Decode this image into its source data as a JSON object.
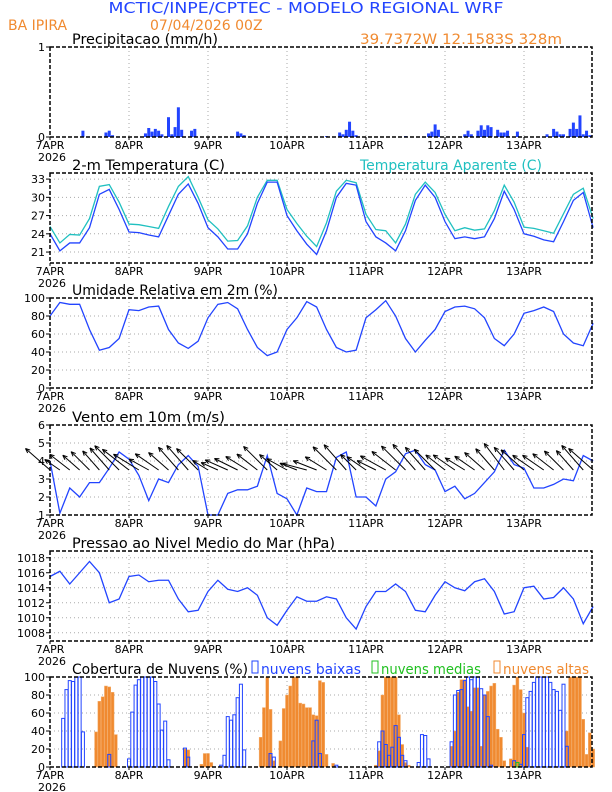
{
  "header": {
    "title": "MCTIC/INPE/CPTEC - MODELO REGIONAL WRF",
    "station": "BA IPIRA",
    "date": "07/04/2026 00Z",
    "location": "39.7372W 12.1583S 328m"
  },
  "colors": {
    "title": "#2244ff",
    "orange": "#f08a30",
    "series": "#2244ff",
    "apparent": "#20c0c0",
    "medium": "#20c020"
  },
  "x_axis": {
    "labels": [
      "7APR",
      "8APR",
      "9APR",
      "10APR",
      "11APR",
      "12APR",
      "13APR"
    ],
    "year": "2026"
  },
  "chart_data": [
    {
      "type": "bar",
      "title": "Precipitacao (mm/h)",
      "ylim": [
        0,
        1
      ],
      "yticks": [
        "0",
        "1"
      ],
      "hours": [
        10,
        17,
        18,
        19,
        29,
        30,
        31,
        32,
        33,
        34,
        36,
        37,
        38,
        39,
        40,
        43,
        44,
        57,
        58,
        59,
        84,
        88,
        89,
        90,
        91,
        92,
        93,
        108,
        115,
        116,
        117,
        118,
        126,
        127,
        128,
        130,
        131,
        132,
        133,
        134,
        136,
        137,
        138,
        139,
        142,
        151,
        153,
        154,
        155,
        156,
        158,
        159,
        160,
        161,
        162,
        163,
        164
      ],
      "values": [
        0.07,
        0.05,
        0.07,
        0.02,
        0.04,
        0.1,
        0.06,
        0.09,
        0.07,
        0.03,
        0.22,
        0.03,
        0.11,
        0.33,
        0.08,
        0.07,
        0.09,
        0.06,
        0.04,
        0.02,
        0.01,
        0.05,
        0.03,
        0.08,
        0.17,
        0.07,
        0.02,
        0.01,
        0.04,
        0.06,
        0.14,
        0.08,
        0.03,
        0.07,
        0.03,
        0.07,
        0.13,
        0.08,
        0.13,
        0.11,
        0.08,
        0.05,
        0.05,
        0.07,
        0.06,
        0.03,
        0.09,
        0.06,
        0.03,
        0.03,
        0.09,
        0.16,
        0.09,
        0.24,
        0.03,
        0.07,
        0.02
      ]
    },
    {
      "type": "line",
      "title": "2-m Temperatura (C)",
      "ylim": [
        19.2,
        34
      ],
      "yticks": [
        "21",
        "24",
        "27",
        "30",
        "33"
      ],
      "hours": [
        0,
        3,
        6,
        9,
        12,
        15,
        18,
        21,
        24,
        27,
        30,
        33,
        36,
        39,
        42,
        45,
        48,
        51,
        54,
        57,
        60,
        63,
        66,
        69,
        72,
        75,
        78,
        81,
        84,
        87,
        90,
        93,
        96,
        99,
        102,
        105,
        108,
        111,
        114,
        117,
        120,
        123,
        126,
        129,
        132,
        135,
        138,
        141,
        144,
        147,
        150,
        153,
        156,
        159,
        162,
        165
      ],
      "series": [
        {
          "name": "2-m Temperatura (C)",
          "values": [
            24,
            21.2,
            22.5,
            22.5,
            25,
            30.5,
            31.3,
            28,
            24.3,
            24.2,
            23.8,
            23.5,
            27,
            30.5,
            32.2,
            29,
            25,
            23.5,
            21.5,
            21.5,
            24,
            29,
            32.5,
            32.5,
            27,
            24.5,
            22.3,
            20.6,
            24.5,
            30,
            32.3,
            32,
            26,
            23.5,
            22.5,
            21.2,
            24.5,
            29.5,
            32,
            30,
            26,
            23.2,
            23.5,
            23.2,
            23.5,
            26.5,
            31,
            28,
            24,
            23.6,
            23,
            22.7,
            26,
            29.5,
            30.8,
            25
          ]
        },
        {
          "name": "Temperatura Aparente (C)",
          "values": [
            25.2,
            22.5,
            23.9,
            23.8,
            26.5,
            31.8,
            32.1,
            29.2,
            25.6,
            25.5,
            25.2,
            24.9,
            28.5,
            31.8,
            33.4,
            30,
            26.3,
            24.8,
            22.8,
            22.9,
            25.3,
            30,
            32.8,
            32.8,
            28,
            25.7,
            23.6,
            21.9,
            25.8,
            31,
            32.8,
            32.4,
            27.2,
            24.7,
            24.5,
            22.5,
            25.6,
            30.5,
            32.5,
            30.8,
            27.2,
            24.5,
            25,
            24.6,
            24.8,
            27.8,
            32,
            29.2,
            25.1,
            24.9,
            24.5,
            24.1,
            27.3,
            30.5,
            31.5,
            26.5
          ]
        }
      ]
    },
    {
      "type": "line",
      "title": "Umidade Relativa em 2m (%)",
      "ylim": [
        0,
        100
      ],
      "yticks": [
        "0",
        "20",
        "40",
        "60",
        "80",
        "100"
      ],
      "values": [
        80,
        95,
        93,
        93,
        65,
        42,
        45,
        55,
        87,
        86,
        90,
        91,
        65,
        50,
        44,
        52,
        78,
        93,
        95,
        88,
        65,
        45,
        36,
        40,
        65,
        78,
        96,
        90,
        65,
        45,
        40,
        42,
        78,
        87,
        97,
        80,
        55,
        40,
        53,
        65,
        85,
        90,
        91,
        88,
        78,
        55,
        47,
        60,
        83,
        86,
        90,
        85,
        60,
        50,
        47,
        72
      ]
    },
    {
      "type": "line",
      "title": "Vento em 10m (m/s)",
      "ylim": [
        1,
        6
      ],
      "yticks": [
        "1",
        "2",
        "3",
        "4",
        "5",
        "6"
      ],
      "values": [
        4,
        1.1,
        2.5,
        2,
        2.8,
        2.8,
        3.6,
        4.5,
        4.1,
        3.2,
        1.8,
        3,
        2.8,
        3.8,
        4.3,
        3.7,
        1,
        1,
        2.2,
        2.4,
        2.4,
        2.6,
        4.3,
        2.2,
        1.9,
        1,
        2.5,
        2.3,
        2.3,
        4.2,
        4.5,
        2,
        2,
        1.5,
        3,
        3.4,
        4.4,
        4.6,
        3.8,
        3.5,
        2.3,
        2.6,
        1.9,
        2.2,
        2.8,
        3.4,
        4.6,
        3.8,
        3.6,
        2.5,
        2.5,
        2.7,
        3,
        2.9,
        4.3,
        4
      ],
      "direction_deg": [
        130,
        120,
        125,
        130,
        135,
        140,
        140,
        135,
        125,
        115,
        110,
        120,
        130,
        140,
        140,
        135,
        115,
        100,
        100,
        105,
        115,
        125,
        135,
        130,
        110,
        95,
        80,
        95,
        115,
        135,
        140,
        135,
        120,
        105,
        110,
        125,
        135,
        140,
        140,
        135,
        125,
        120,
        115,
        120,
        130,
        140,
        145,
        140,
        130,
        120,
        120,
        125,
        135,
        140,
        140,
        130
      ]
    },
    {
      "type": "line",
      "title": "Pressao ao Nivel Medio do Mar (hPa)",
      "ylim": [
        1006.9,
        1018.9
      ],
      "yticks": [
        "1008",
        "1010",
        "1012",
        "1014",
        "1016",
        "1018"
      ],
      "values": [
        1015.5,
        1016.2,
        1014.5,
        1016,
        1017.5,
        1016,
        1012,
        1012.5,
        1015.5,
        1015.7,
        1014.8,
        1015,
        1015,
        1012.5,
        1010.8,
        1011,
        1013.5,
        1015,
        1013.8,
        1013.5,
        1014,
        1013,
        1010,
        1009,
        1011,
        1012.8,
        1012.2,
        1012.2,
        1012.8,
        1012.5,
        1010,
        1008.5,
        1011.5,
        1013.5,
        1013.5,
        1014.5,
        1013.5,
        1011,
        1010.8,
        1013,
        1014.8,
        1014,
        1013.6,
        1014.8,
        1015.2,
        1013.5,
        1010.5,
        1010.8,
        1014,
        1014.2,
        1012.5,
        1012.7,
        1014,
        1012.5,
        1009.2,
        1011.5
      ]
    },
    {
      "type": "bar",
      "title": "Cobertura de Nuvens (%)",
      "ylim": [
        0,
        100
      ],
      "yticks": [
        "0",
        "20",
        "40",
        "60",
        "80",
        "100"
      ],
      "series": [
        {
          "name": "nuvens baixas",
          "hours": [
            4,
            5,
            6,
            7,
            8,
            9,
            10,
            18,
            24,
            25,
            26,
            27,
            28,
            29,
            30,
            31,
            32,
            33,
            34,
            35,
            36,
            41,
            42,
            52,
            53,
            54,
            55,
            56,
            57,
            58,
            59,
            67,
            68,
            80,
            81,
            82,
            87,
            100,
            101,
            102,
            103,
            104,
            105,
            106,
            107,
            108,
            112,
            113,
            114,
            115,
            122,
            123,
            124,
            125,
            126,
            127,
            128,
            129,
            130,
            131,
            132,
            133,
            134,
            141,
            143,
            144,
            145,
            146,
            147,
            148,
            149,
            150,
            151,
            152,
            153,
            154,
            155,
            156,
            157
          ],
          "values": [
            54,
            86,
            96,
            95,
            100,
            100,
            39,
            14,
            9,
            61,
            91,
            97,
            100,
            100,
            100,
            100,
            95,
            70,
            41,
            51,
            8,
            21,
            11,
            2,
            13,
            56,
            52,
            58,
            77,
            92,
            19,
            15,
            11,
            29,
            52,
            15,
            2,
            28,
            40,
            25,
            13,
            22,
            46,
            33,
            13,
            7,
            5,
            36,
            35,
            9,
            28,
            80,
            85,
            86,
            96,
            100,
            97,
            100,
            100,
            87,
            80,
            56,
            2,
            7,
            3,
            36,
            77,
            84,
            94,
            100,
            100,
            100,
            100,
            94,
            86,
            84,
            63,
            92,
            23
          ]
        },
        {
          "name": "nuvens medias",
          "hours": [
            142
          ],
          "values": [
            5
          ]
        },
        {
          "name": "nuvens altas",
          "hours": [
            14,
            15,
            16,
            17,
            18,
            19,
            20,
            41,
            42,
            46,
            47,
            48,
            49,
            64,
            65,
            66,
            67,
            68,
            70,
            71,
            72,
            73,
            74,
            75,
            76,
            77,
            78,
            79,
            80,
            81,
            82,
            83,
            84,
            86,
            99,
            100,
            101,
            102,
            103,
            104,
            105,
            106,
            107,
            108,
            109,
            122,
            123,
            124,
            125,
            126,
            127,
            128,
            129,
            130,
            131,
            132,
            133,
            134,
            135,
            136,
            137,
            138,
            140,
            141,
            142,
            143,
            144,
            145,
            157,
            158,
            159,
            160,
            161,
            162,
            163,
            164,
            165
          ],
          "values": [
            39,
            73,
            78,
            90,
            89,
            83,
            36,
            20,
            19,
            3,
            15,
            15,
            5,
            33,
            66,
            100,
            64,
            7,
            29,
            65,
            80,
            90,
            100,
            100,
            71,
            70,
            66,
            66,
            58,
            57,
            96,
            94,
            14,
            4,
            2,
            18,
            80,
            100,
            100,
            100,
            100,
            58,
            25,
            5,
            2,
            23,
            40,
            83,
            97,
            97,
            67,
            62,
            88,
            88,
            23,
            80,
            84,
            90,
            93,
            42,
            33,
            7,
            9,
            91,
            100,
            86,
            60,
            22,
            40,
            100,
            100,
            100,
            100,
            53,
            14,
            38,
            20
          ]
        }
      ]
    }
  ]
}
